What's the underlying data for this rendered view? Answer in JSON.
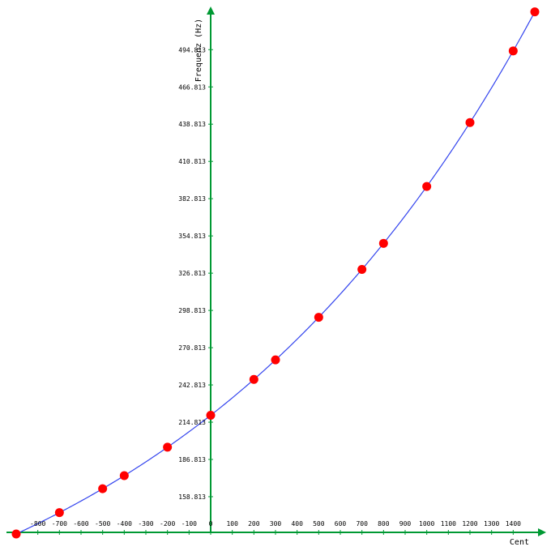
{
  "chart_data": {
    "type": "line",
    "title": "",
    "xlabel": "Cent",
    "ylabel": "Frequenz (Hz)",
    "xlim": [
      -900,
      1500
    ],
    "ylim": [
      132,
      523
    ],
    "x_ticks": [
      -800,
      -700,
      -600,
      -500,
      -400,
      -300,
      -200,
      -100,
      0,
      100,
      200,
      300,
      400,
      500,
      600,
      700,
      800,
      900,
      1000,
      1100,
      1200,
      1300,
      1400
    ],
    "x_tick_labels": [
      "-800",
      "-700",
      "-600",
      "-500",
      "-400",
      "-300",
      "-200",
      "-100",
      "0",
      "100",
      "200",
      "300",
      "400",
      "500",
      "600",
      "700",
      "800",
      "900",
      "1000",
      "1100",
      "1200",
      "1300",
      "1400"
    ],
    "y_ticks": [
      158.813,
      186.813,
      214.813,
      242.813,
      270.813,
      298.813,
      326.813,
      354.813,
      382.813,
      410.813,
      438.813,
      466.813,
      494.813
    ],
    "y_tick_labels": [
      "158.813",
      "186.813",
      "214.813",
      "242.813",
      "270.813",
      "298.813",
      "326.813",
      "354.813",
      "382.813",
      "410.813",
      "438.813",
      "466.813",
      "494.813"
    ],
    "curve": {
      "reference_x": 0,
      "reference_y": 220,
      "x_range": [
        -900,
        1500
      ]
    },
    "points": {
      "x": [
        -900,
        -700,
        -500,
        -400,
        -200,
        0,
        200,
        300,
        500,
        700,
        800,
        1000,
        1200,
        1400,
        1500
      ],
      "y": [
        130.81,
        146.83,
        164.81,
        174.61,
        196.0,
        220.0,
        246.94,
        261.63,
        293.66,
        329.63,
        349.23,
        392.0,
        440.0,
        493.88,
        523.25
      ]
    },
    "colors": {
      "axis": "#009933",
      "curve": "#3344ee",
      "points": "#ff0000"
    },
    "grid": false
  }
}
